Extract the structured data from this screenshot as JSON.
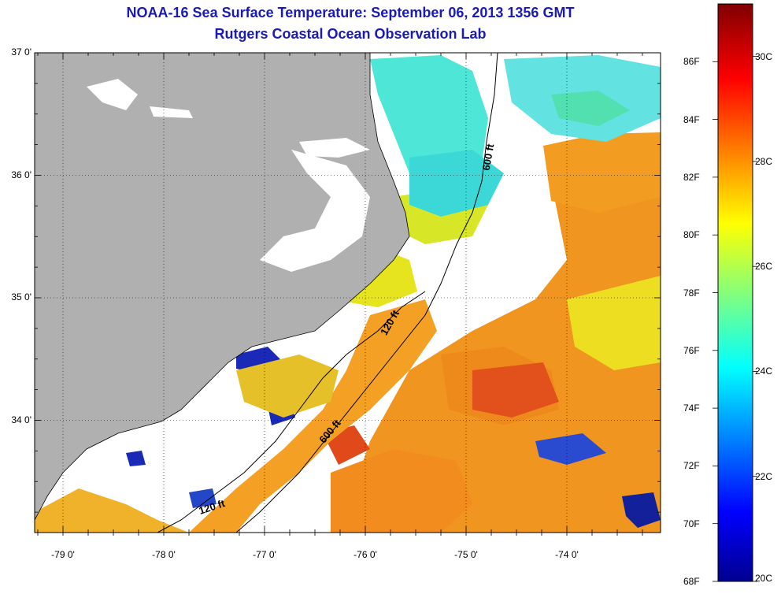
{
  "title_line1": "NOAA-16 Sea Surface Temperature:  September 06, 2013 1356 GMT",
  "title_line2": "Rutgers Coastal Ocean Observation Lab",
  "lat_labels": [
    {
      "text": "37 0'",
      "lat": 37
    },
    {
      "text": "36 0'",
      "lat": 36
    },
    {
      "text": "35 0'",
      "lat": 35
    },
    {
      "text": "34 0'",
      "lat": 34
    }
  ],
  "lon_labels": [
    {
      "text": "-79 0'",
      "lon": -79
    },
    {
      "text": "-78 0'",
      "lon": -78
    },
    {
      "text": "-77 0'",
      "lon": -77
    },
    {
      "text": "-76 0'",
      "lon": -76
    },
    {
      "text": "-75 0'",
      "lon": -75
    },
    {
      "text": "-74 0'",
      "lon": -74
    }
  ],
  "isobaths": [
    {
      "text": "600 ft",
      "name": "isobath-label-600ft-north"
    },
    {
      "text": "120 ft",
      "name": "isobath-label-120ft-middle"
    },
    {
      "text": "600 ft",
      "name": "isobath-label-600ft-south"
    },
    {
      "text": "120 ft",
      "name": "isobath-label-120ft-south"
    }
  ],
  "colorbar": {
    "min_f": 68,
    "max_f": 88,
    "min_c": 20,
    "max_c": 31,
    "f_labels": [
      "86F",
      "84F",
      "82F",
      "80F",
      "78F",
      "76F",
      "74F",
      "72F",
      "70F",
      "68F"
    ],
    "c_labels": [
      "30C",
      "28C",
      "26C",
      "24C",
      "22C",
      "20C"
    ]
  },
  "colors": {
    "land": "#b0b0b0",
    "cloud": "#ffffff",
    "warm_orange": "#f08a1e",
    "red": "#e0421c",
    "yellow": "#e8e21e",
    "cyan": "#3ce6e0",
    "blue_cold": "#1a2ab0",
    "title": "#1a1ab4"
  }
}
